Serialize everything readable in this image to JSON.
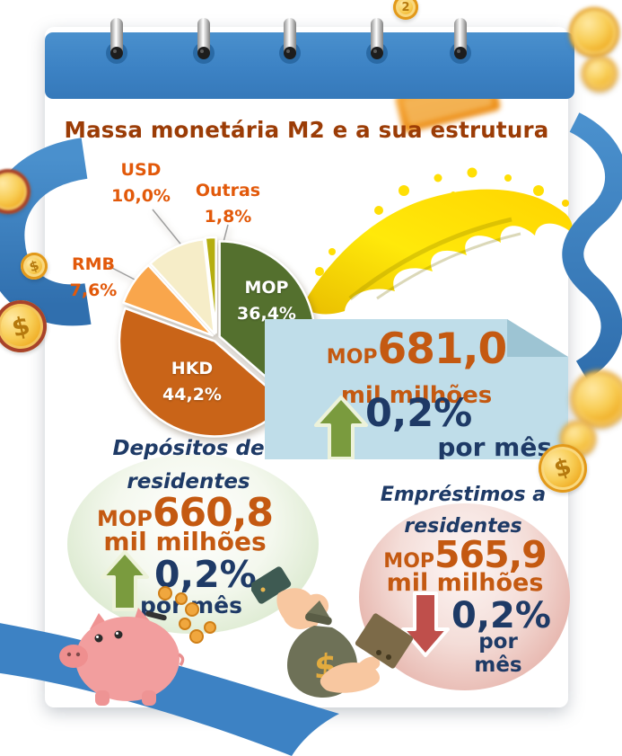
{
  "header": {
    "title": "Massa monetária M2 e a sua estrutura"
  },
  "chart_data": {
    "type": "pie",
    "title": "Massa monetária M2 e a sua estrutura",
    "start": "12 o'clock, clockwise",
    "legend": false,
    "segments": [
      {
        "label": "MOP",
        "value": 36.4,
        "value_label": "36,4%",
        "color": "#54702e",
        "label_position": "inside"
      },
      {
        "label": "HKD",
        "value": 44.2,
        "value_label": "44,2%",
        "color": "#c96418",
        "label_position": "inside"
      },
      {
        "label": "RMB",
        "value": 7.6,
        "value_label": "7,6%",
        "color": "#f9a64c",
        "label_position": "outside"
      },
      {
        "label": "USD",
        "value": 10.0,
        "value_label": "10,0%",
        "color": "#f6edc8",
        "label_position": "outside"
      },
      {
        "label": "Outras",
        "value": 1.8,
        "value_label": "1,8%",
        "color": "#b5ae10",
        "label_position": "outside"
      }
    ]
  },
  "m2_box": {
    "currency_prefix": "MOP",
    "value": "681,0",
    "unit": "mil milhões",
    "change": "0,2%",
    "change_direction": "up",
    "period": "por mês"
  },
  "deposits": {
    "title_line1": "Depósitos de",
    "title_line2": "residentes",
    "currency_prefix": "MOP",
    "value": "660,8",
    "unit": "mil milhões",
    "change": "0,2%",
    "change_direction": "up",
    "period": "por mês"
  },
  "loans": {
    "title_line1": "Empréstimos a",
    "title_line2": "residentes",
    "currency_prefix": "MOP",
    "value": "565,9",
    "unit": "mil milhões",
    "change": "0,2%",
    "change_direction": "down",
    "period": "por mês"
  },
  "decor": {
    "coin_face_value": "2",
    "currency_symbol": "$"
  },
  "colors": {
    "notebook_blue": "#3d82c4",
    "panel_blue": "#bfdde9",
    "navy": "#1e3a66",
    "orange_value": "#c45911",
    "orange_label": "#e2590a",
    "title_brown": "#9b3c06",
    "arrow_up_green": "#7a9b3e",
    "arrow_down_red": "#bf4f4b"
  }
}
